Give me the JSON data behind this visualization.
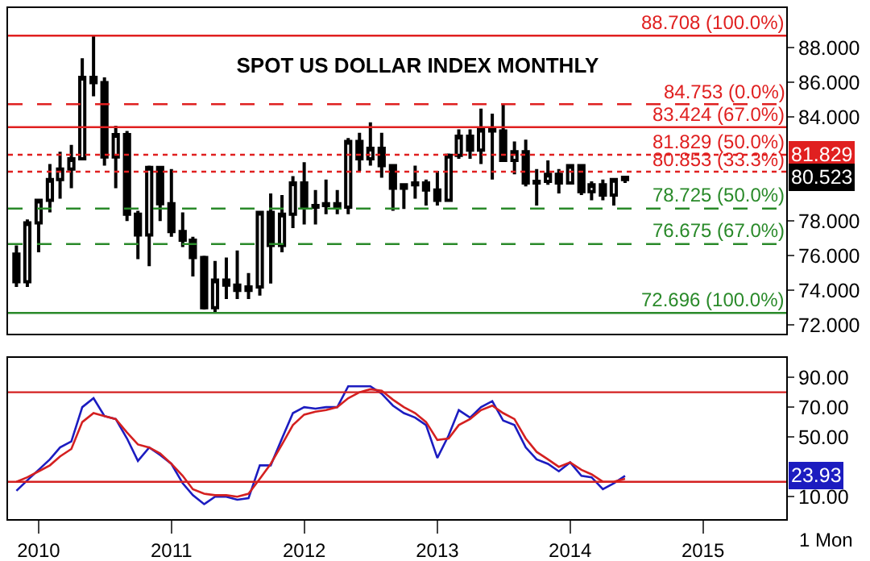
{
  "chart_data": [
    {
      "type": "candlestick",
      "title": "SPOT US DOLLAR INDEX MONTHLY",
      "color": "#000000",
      "tick_labels": "y",
      "x": [
        "2009-11",
        "2009-12",
        "2010-01",
        "2010-02",
        "2010-03",
        "2010-04",
        "2010-05",
        "2010-06",
        "2010-07",
        "2010-08",
        "2010-09",
        "2010-10",
        "2010-11",
        "2010-12",
        "2011-01",
        "2011-02",
        "2011-03",
        "2011-04",
        "2011-05",
        "2011-06",
        "2011-07",
        "2011-08",
        "2011-09",
        "2011-10",
        "2011-11",
        "2011-12",
        "2012-01",
        "2012-02",
        "2012-03",
        "2012-04",
        "2012-05",
        "2012-06",
        "2012-07",
        "2012-08",
        "2012-09",
        "2012-10",
        "2012-11",
        "2012-12",
        "2013-01",
        "2013-02",
        "2013-03",
        "2013-04",
        "2013-05",
        "2013-06",
        "2013-07",
        "2013-08",
        "2013-09",
        "2013-10",
        "2013-11",
        "2013-12",
        "2014-01",
        "2014-02",
        "2014-03",
        "2014-04",
        "2014-05",
        "2014-06"
      ],
      "ohlc": [
        [
          76.1,
          76.6,
          74.2,
          74.5
        ],
        [
          74.5,
          78.1,
          74.2,
          77.9
        ],
        [
          77.9,
          79.3,
          76.2,
          79.2
        ],
        [
          79.2,
          81.3,
          78.5,
          80.4
        ],
        [
          80.4,
          82.0,
          79.3,
          81.0
        ],
        [
          81.0,
          82.4,
          79.9,
          81.6
        ],
        [
          81.6,
          87.4,
          81.5,
          86.3
        ],
        [
          86.3,
          88.708,
          85.2,
          86.0
        ],
        [
          86.0,
          86.3,
          81.2,
          81.7
        ],
        [
          81.7,
          83.5,
          79.9,
          83.0
        ],
        [
          83.0,
          83.2,
          78.0,
          78.4
        ],
        [
          78.4,
          78.6,
          75.8,
          77.2
        ],
        [
          77.2,
          81.2,
          75.4,
          81.1
        ],
        [
          81.1,
          81.1,
          78.0,
          79.0
        ],
        [
          79.0,
          81.0,
          77.1,
          77.4
        ],
        [
          77.4,
          78.5,
          76.5,
          76.9
        ],
        [
          76.9,
          77.1,
          74.8,
          75.9
        ],
        [
          75.9,
          76.0,
          72.9,
          73.0
        ],
        [
          73.0,
          75.7,
          72.696,
          74.6
        ],
        [
          74.6,
          75.9,
          73.5,
          74.3
        ],
        [
          74.3,
          76.3,
          73.5,
          74.0
        ],
        [
          74.0,
          75.0,
          73.5,
          74.2
        ],
        [
          74.2,
          78.5,
          73.7,
          78.5
        ],
        [
          78.5,
          79.6,
          74.4,
          76.6
        ],
        [
          76.6,
          79.5,
          76.2,
          78.4
        ],
        [
          78.4,
          80.6,
          77.6,
          80.2
        ],
        [
          80.2,
          81.4,
          77.8,
          78.8
        ],
        [
          78.8,
          79.8,
          77.8,
          78.9
        ],
        [
          78.9,
          80.4,
          78.4,
          79.0
        ],
        [
          79.0,
          79.8,
          78.4,
          78.8
        ],
        [
          78.8,
          82.8,
          78.4,
          82.6
        ],
        [
          82.6,
          83.1,
          80.9,
          81.6
        ],
        [
          81.6,
          83.7,
          81.2,
          82.2
        ],
        [
          82.2,
          83.1,
          80.5,
          81.2
        ],
        [
          81.2,
          81.2,
          78.6,
          79.9
        ],
        [
          79.9,
          80.1,
          78.7,
          80.1
        ],
        [
          80.1,
          81.2,
          79.3,
          80.2
        ],
        [
          80.2,
          80.4,
          78.9,
          79.8
        ],
        [
          79.8,
          80.9,
          78.9,
          79.2
        ],
        [
          79.2,
          81.9,
          79.2,
          81.8
        ],
        [
          81.8,
          83.3,
          81.6,
          82.9
        ],
        [
          82.9,
          83.3,
          81.6,
          82.1
        ],
        [
          82.1,
          84.5,
          81.3,
          83.3
        ],
        [
          83.3,
          84.2,
          80.4,
          83.2
        ],
        [
          83.2,
          84.753,
          81.5,
          81.5
        ],
        [
          81.5,
          82.6,
          80.7,
          82.0
        ],
        [
          82.0,
          82.7,
          80.0,
          80.2
        ],
        [
          80.2,
          81.0,
          78.9,
          80.3
        ],
        [
          80.3,
          81.5,
          80.1,
          80.7
        ],
        [
          80.7,
          81.0,
          79.6,
          80.2
        ],
        [
          80.2,
          81.3,
          80.2,
          81.2
        ],
        [
          81.2,
          81.3,
          79.5,
          79.7
        ],
        [
          79.7,
          80.3,
          79.2,
          80.1
        ],
        [
          80.1,
          80.4,
          79.2,
          79.5
        ],
        [
          79.5,
          80.4,
          78.9,
          80.4
        ],
        [
          80.4,
          80.523,
          80.2,
          80.523
        ]
      ],
      "xlim": [
        "2009-10-09",
        "2015-08-18"
      ],
      "ylim": [
        71.5,
        90.3
      ],
      "yticks": [
        {
          "value": 72,
          "label": "72.000"
        },
        {
          "value": 74,
          "label": "74.000"
        },
        {
          "value": 76,
          "label": "76.000"
        },
        {
          "value": 78,
          "label": "78.000"
        },
        {
          "value": 84,
          "label": "84.000"
        },
        {
          "value": 86,
          "label": "86.000"
        },
        {
          "value": 88,
          "label": "88.000"
        }
      ],
      "ref_lines": [
        {
          "axis": "y",
          "value": 88.708,
          "label": "88.708 (100.0%)",
          "color": "#e02020",
          "line_style": "solid"
        },
        {
          "axis": "y",
          "value": 84.753,
          "label": "84.753 (0.0%)",
          "color": "#e02020",
          "line_style": "dashed"
        },
        {
          "axis": "y",
          "value": 83.424,
          "label": "83.424 (67.0%)",
          "color": "#e02020",
          "line_style": "solid"
        },
        {
          "axis": "y",
          "value": 81.829,
          "label": "81.829 (50.0%)",
          "color": "#e02020",
          "line_style": "dotted"
        },
        {
          "axis": "y",
          "value": 80.853,
          "label": "80.853 (33.3%)",
          "color": "#e02020",
          "line_style": "dotted"
        },
        {
          "axis": "y",
          "value": 78.725,
          "label": "78.725 (50.0%)",
          "color": "#2a8a2a",
          "line_style": "dashed"
        },
        {
          "axis": "y",
          "value": 76.675,
          "label": "76.675 (67.0%)",
          "color": "#2a8a2a",
          "line_style": "dashed"
        },
        {
          "axis": "y",
          "value": 72.696,
          "label": "72.696 (100.0%)",
          "color": "#2a8a2a",
          "line_style": "solid"
        }
      ],
      "annotations": [
        {
          "text": "81.829",
          "y": 81.829
        },
        {
          "text": "80.523",
          "y": 80.523
        }
      ]
    },
    {
      "type": "line",
      "line_style": "solid",
      "x": [
        "2009-11",
        "2009-12",
        "2010-01",
        "2010-02",
        "2010-03",
        "2010-04",
        "2010-05",
        "2010-06",
        "2010-07",
        "2010-08",
        "2010-09",
        "2010-10",
        "2010-11",
        "2010-12",
        "2011-01",
        "2011-02",
        "2011-03",
        "2011-04",
        "2011-05",
        "2011-06",
        "2011-07",
        "2011-08",
        "2011-09",
        "2011-10",
        "2011-11",
        "2011-12",
        "2012-01",
        "2012-02",
        "2012-03",
        "2012-04",
        "2012-05",
        "2012-06",
        "2012-07",
        "2012-08",
        "2012-09",
        "2012-10",
        "2012-11",
        "2012-12",
        "2013-01",
        "2013-02",
        "2013-03",
        "2013-04",
        "2013-05",
        "2013-06",
        "2013-07",
        "2013-08",
        "2013-09",
        "2013-10",
        "2013-11",
        "2013-12",
        "2014-01",
        "2014-02",
        "2014-03",
        "2014-04",
        "2014-05",
        "2014-06"
      ],
      "series": [
        {
          "color": "#1c1cc0",
          "values": [
            14,
            21,
            28,
            35,
            43,
            47,
            70,
            76,
            64,
            62,
            49,
            34,
            43,
            38,
            32,
            19,
            11,
            5,
            10,
            10,
            8,
            9,
            31,
            31,
            49,
            66,
            70,
            69,
            70,
            70,
            84,
            84,
            84,
            79,
            71,
            66,
            63,
            58,
            36,
            51,
            68,
            63,
            70,
            74,
            61,
            58,
            43,
            35,
            32,
            27,
            33,
            24,
            23,
            15,
            19,
            23.93
          ]
        },
        {
          "color": "#d42020",
          "values": [
            20,
            23,
            27,
            31,
            37,
            42,
            60,
            66,
            64,
            62,
            53,
            45,
            43,
            39,
            32,
            24,
            15,
            12,
            11,
            11,
            10,
            12,
            22,
            32,
            45,
            58,
            65,
            67,
            68,
            70,
            76,
            80,
            82,
            81,
            75,
            70,
            66,
            60,
            48,
            49,
            58,
            62,
            68,
            71,
            66,
            62,
            49,
            40,
            35,
            30,
            33,
            28,
            25,
            20,
            20,
            22
          ]
        }
      ],
      "xlim": [
        "2009-10-09",
        "2015-08-18"
      ],
      "xticks": [
        {
          "value": "2010-01",
          "label": "2010"
        },
        {
          "value": "2011-01",
          "label": "2011"
        },
        {
          "value": "2012-01",
          "label": "2012"
        },
        {
          "value": "2013-01",
          "label": "2013"
        },
        {
          "value": "2014-01",
          "label": "2014"
        },
        {
          "value": "2015-01",
          "label": "2015"
        }
      ],
      "ylim": [
        -5,
        103
      ],
      "yticks": [
        {
          "value": 10,
          "label": "10.00"
        },
        {
          "value": 50,
          "label": "50.00"
        },
        {
          "value": 70,
          "label": "70.00"
        },
        {
          "value": 90,
          "label": "90.00"
        }
      ],
      "ref_lines": [
        {
          "axis": "y",
          "value": 80,
          "color": "#d42020",
          "line_style": "solid"
        },
        {
          "axis": "y",
          "value": 20,
          "color": "#d42020",
          "line_style": "solid"
        }
      ],
      "annotations": [
        "1 Mon",
        {
          "text": "23.93",
          "y": 23.93
        }
      ]
    }
  ]
}
